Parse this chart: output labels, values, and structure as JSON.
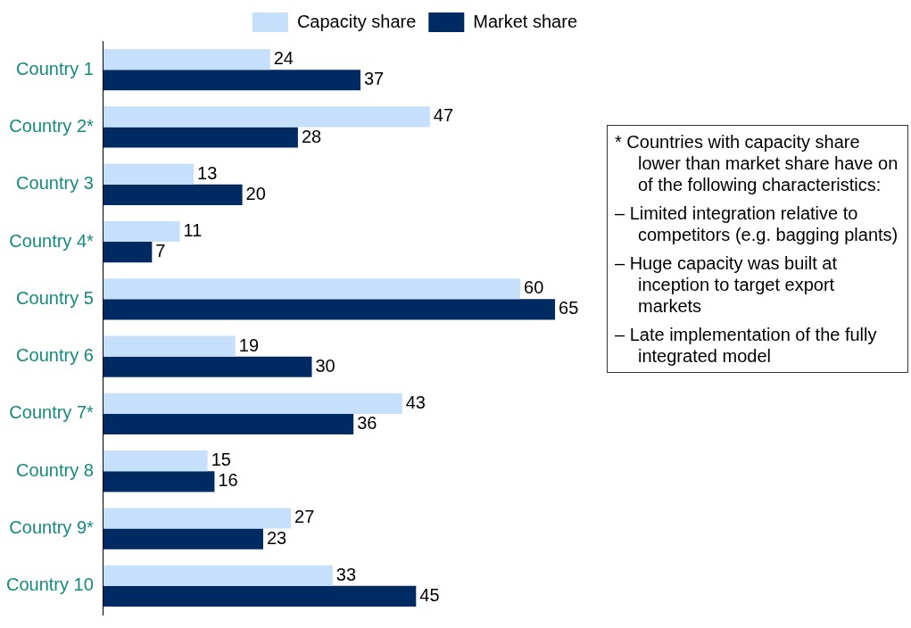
{
  "chart_data": {
    "type": "bar",
    "orientation": "horizontal",
    "categories": [
      "Country 1",
      "Country 2*",
      "Country 3",
      "Country 4*",
      "Country 5",
      "Country 6",
      "Country 7*",
      "Country 8",
      "Country 9*",
      "Country 10"
    ],
    "series": [
      {
        "name": "Capacity share",
        "color": "#c6e0fb",
        "values": [
          24,
          47,
          13,
          11,
          60,
          19,
          43,
          15,
          27,
          33
        ]
      },
      {
        "name": "Market share",
        "color": "#002b62",
        "values": [
          37,
          28,
          20,
          7,
          65,
          30,
          36,
          16,
          23,
          45
        ]
      }
    ],
    "tick_labels": "y",
    "data_labels": true,
    "legend": "top right",
    "grid": false,
    "annotations": [
      "* Countries with capacity share lower than market share have on of the following characteristics:",
      "– Limited integration relative to competitors (e.g. bagging plants)",
      "– Huge capacity was built at inception to target export markets",
      "– Late implementation of the fully integrated model"
    ]
  }
}
